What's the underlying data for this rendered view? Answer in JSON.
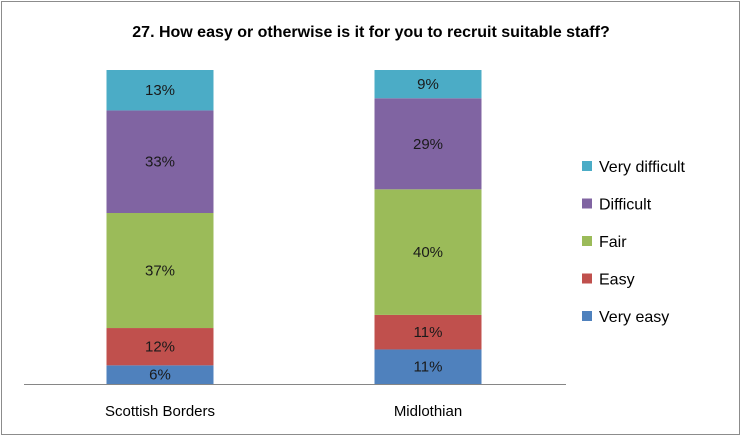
{
  "chart_data": {
    "type": "bar",
    "stacked": true,
    "title": "27.  How easy or otherwise is it for you to recruit suitable staff?",
    "categories": [
      "Scottish Borders",
      "Midlothian"
    ],
    "series": [
      {
        "name": "Very easy",
        "values": [
          6,
          11
        ],
        "labels": [
          "6%",
          "11%"
        ],
        "color": "#4f81bd"
      },
      {
        "name": "Easy",
        "values": [
          12,
          11
        ],
        "labels": [
          "12%",
          "11%"
        ],
        "color": "#c0504d"
      },
      {
        "name": "Fair",
        "values": [
          37,
          40
        ],
        "labels": [
          "37%",
          "40%"
        ],
        "color": "#9bbb59"
      },
      {
        "name": "Difficult",
        "values": [
          33,
          29
        ],
        "labels": [
          "33%",
          "29%"
        ],
        "color": "#8064a2"
      },
      {
        "name": "Very difficult",
        "values": [
          13,
          9
        ],
        "labels": [
          "13%",
          "9%"
        ],
        "color": "#4bacc6"
      }
    ],
    "legend_order": [
      "Very difficult",
      "Difficult",
      "Fair",
      "Easy",
      "Very easy"
    ],
    "ylim": [
      0,
      100
    ],
    "grid": false,
    "legend_position": "right"
  }
}
